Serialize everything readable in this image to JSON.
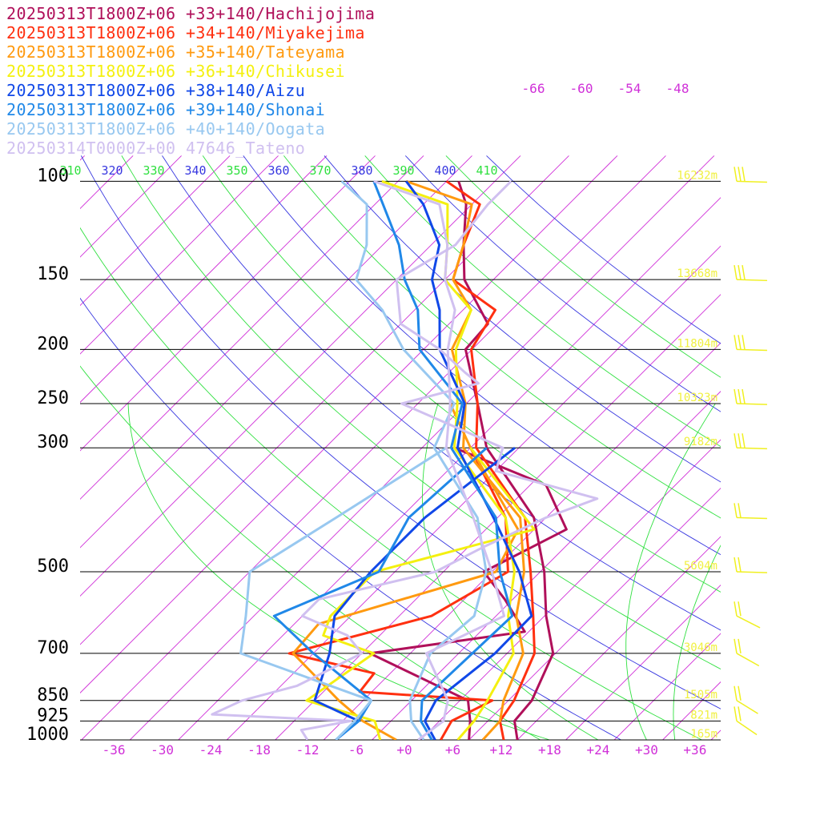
{
  "chart_data": {
    "type": "line",
    "kind": "skew-T log-P sounding",
    "legend_placement": "top-left",
    "legend": [
      {
        "label": "20250313T1800Z+06 +33+140/Hachijojima",
        "color": "#b0105a"
      },
      {
        "label": "20250313T1800Z+06 +34+140/Miyakejima",
        "color": "#ff3010"
      },
      {
        "label": "20250313T1800Z+06 +35+140/Tateyama",
        "color": "#ff9a10"
      },
      {
        "label": "20250313T1800Z+06 +36+140/Chikusei",
        "color": "#f4f010"
      },
      {
        "label": "20250313T1800Z+06 +38+140/Aizu",
        "color": "#1048e8"
      },
      {
        "label": "20250313T1800Z+06 +39+140/Shonai",
        "color": "#2088e8"
      },
      {
        "label": "20250313T1800Z+06 +40+140/Oogata",
        "color": "#98c8f0"
      },
      {
        "label": "20250314T0000Z+00 47646_Tateno",
        "color": "#d0c0f0"
      }
    ],
    "pressure_levels": [
      100,
      150,
      200,
      250,
      300,
      500,
      700,
      850,
      925,
      1000
    ],
    "pressure_labels": [
      "100",
      "150",
      "200",
      "250",
      "300",
      "500",
      "700",
      "850",
      "925",
      "1000"
    ],
    "height_labels": [
      {
        "p": 100,
        "text": "16232m"
      },
      {
        "p": 150,
        "text": "13668m"
      },
      {
        "p": 200,
        "text": "11804m"
      },
      {
        "p": 250,
        "text": "10323m"
      },
      {
        "p": 300,
        "text": "9182m"
      },
      {
        "p": 500,
        "text": "5604m"
      },
      {
        "p": 700,
        "text": "3046m"
      },
      {
        "p": 850,
        "text": "1505m"
      },
      {
        "p": 925,
        "text": "821m"
      },
      {
        "p": 1000,
        "text": "165m"
      }
    ],
    "temperature_ticks": [
      -36,
      -30,
      -24,
      -18,
      -12,
      -6,
      0,
      6,
      12,
      18,
      24,
      30,
      36
    ],
    "temperature_tick_labels": [
      "-36",
      "-30",
      "-24",
      "-18",
      "-12",
      "-6",
      "+0",
      "+6",
      "+12",
      "+18",
      "+24",
      "+30",
      "+36"
    ],
    "top_isotherm_labels": [
      "-66",
      "-60",
      "-54",
      "-48"
    ],
    "theta_labels": [
      "310",
      "320",
      "330",
      "340",
      "350",
      "360",
      "370",
      "380",
      "390",
      "400",
      "410"
    ],
    "series": [
      {
        "name": "20250313T1800Z+06 +33+140/Hachijojima",
        "color": "#b0105a",
        "temperature": [
          [
            1000,
            14
          ],
          [
            925,
            11.3
          ],
          [
            850,
            10.9
          ],
          [
            700,
            7.7
          ],
          [
            600,
            2.2
          ],
          [
            500,
            -3.5
          ],
          [
            400,
            -11.5
          ],
          [
            300,
            -26
          ],
          [
            250,
            -32.6
          ],
          [
            200,
            -40.8
          ],
          [
            180,
            -41.2
          ],
          [
            150,
            -49.6
          ],
          [
            130,
            -54
          ],
          [
            110,
            -58.7
          ],
          [
            100,
            -62.5
          ]
        ],
        "dewpoint": [
          [
            1000,
            8
          ],
          [
            925,
            5.8
          ],
          [
            850,
            3
          ],
          [
            700,
            -15
          ],
          [
            640,
            1.5
          ],
          [
            560,
            -5
          ],
          [
            500,
            -11
          ],
          [
            420,
            -6
          ],
          [
            350,
            -14
          ],
          [
            300,
            -30
          ]
        ]
      },
      {
        "name": "20250313T1800Z+06 +34+140/Miyakejima",
        "color": "#ff3010",
        "temperature": [
          [
            1000,
            12.3
          ],
          [
            925,
            9.5
          ],
          [
            850,
            8.7
          ],
          [
            700,
            5.4
          ],
          [
            600,
            0.6
          ],
          [
            500,
            -5.2
          ],
          [
            400,
            -12.6
          ],
          [
            300,
            -27.3
          ],
          [
            250,
            -32.6
          ],
          [
            200,
            -40.1
          ],
          [
            170,
            -42
          ],
          [
            150,
            -51
          ],
          [
            130,
            -54
          ],
          [
            110,
            -57
          ],
          [
            100,
            -64
          ]
        ],
        "dewpoint": [
          [
            1000,
            4.5
          ],
          [
            925,
            3.5
          ],
          [
            850,
            6
          ],
          [
            820,
            -11.5
          ],
          [
            760,
            -12
          ],
          [
            700,
            -25
          ],
          [
            600,
            -12
          ],
          [
            500,
            -8
          ],
          [
            400,
            -15
          ],
          [
            300,
            -28
          ]
        ]
      },
      {
        "name": "20250313T1800Z+06 +35+140/Tateyama",
        "color": "#ff9a10",
        "temperature": [
          [
            1000,
            9.7
          ],
          [
            925,
            9.5
          ],
          [
            850,
            7.4
          ],
          [
            700,
            4
          ],
          [
            600,
            -1.5
          ],
          [
            500,
            -6
          ],
          [
            400,
            -13.2
          ],
          [
            300,
            -28.9
          ],
          [
            250,
            -34.1
          ],
          [
            200,
            -42.5
          ],
          [
            170,
            -45
          ],
          [
            150,
            -51
          ],
          [
            130,
            -54
          ],
          [
            110,
            -58
          ],
          [
            100,
            -69
          ]
        ],
        "dewpoint": [
          [
            1000,
            -1
          ],
          [
            925,
            -7.5
          ],
          [
            850,
            -13
          ],
          [
            700,
            -24.5
          ],
          [
            620,
            -25
          ],
          [
            500,
            -9.5
          ],
          [
            420,
            -12
          ],
          [
            300,
            -28
          ],
          [
            250,
            -36
          ]
        ]
      },
      {
        "name": "20250313T1800Z+06 +36+140/Chikusei",
        "color": "#f4f010",
        "temperature": [
          [
            1000,
            6.6
          ],
          [
            925,
            6.3
          ],
          [
            850,
            5.4
          ],
          [
            700,
            2.8
          ],
          [
            600,
            -2.5
          ],
          [
            500,
            -7.2
          ],
          [
            400,
            -15
          ],
          [
            300,
            -30
          ],
          [
            250,
            -35.1
          ],
          [
            200,
            -42
          ],
          [
            170,
            -45
          ],
          [
            150,
            -52
          ],
          [
            130,
            -56
          ],
          [
            110,
            -61
          ],
          [
            100,
            -72
          ]
        ],
        "dewpoint": [
          [
            1000,
            -3
          ],
          [
            925,
            -6
          ],
          [
            850,
            -17
          ],
          [
            700,
            -14.5
          ],
          [
            650,
            -23
          ],
          [
            600,
            -24.5
          ],
          [
            500,
            -24.5
          ],
          [
            420,
            -10
          ],
          [
            300,
            -28
          ]
        ]
      },
      {
        "name": "20250313T1800Z+06 +38+140/Aizu",
        "color": "#1048e8",
        "temperature": [
          [
            1000,
            3.8
          ],
          [
            925,
            0.2
          ],
          [
            850,
            -1
          ],
          [
            700,
            0.5
          ],
          [
            600,
            0.4
          ],
          [
            500,
            -6.6
          ],
          [
            400,
            -16.5
          ],
          [
            300,
            -29.6
          ],
          [
            250,
            -34.2
          ],
          [
            200,
            -44
          ],
          [
            170,
            -48.9
          ],
          [
            150,
            -53.6
          ],
          [
            130,
            -57
          ],
          [
            110,
            -64
          ],
          [
            100,
            -69
          ]
        ],
        "dewpoint": [
          [
            1000,
            -8.5
          ],
          [
            925,
            -8
          ],
          [
            850,
            -16
          ],
          [
            700,
            -20
          ],
          [
            600,
            -24
          ],
          [
            500,
            -25
          ],
          [
            400,
            -25
          ],
          [
            300,
            -22.5
          ]
        ]
      },
      {
        "name": "20250313T1800Z+06 +39+140/Shonai",
        "color": "#2088e8",
        "temperature": [
          [
            1000,
            3.4
          ],
          [
            925,
            -0.3
          ],
          [
            850,
            -2.7
          ],
          [
            700,
            -2.3
          ],
          [
            600,
            -2
          ],
          [
            500,
            -9
          ],
          [
            400,
            -16.2
          ],
          [
            300,
            -30.4
          ],
          [
            250,
            -34.5
          ],
          [
            200,
            -46.5
          ],
          [
            170,
            -51.6
          ],
          [
            150,
            -57
          ],
          [
            130,
            -62
          ],
          [
            110,
            -69
          ],
          [
            100,
            -73
          ]
        ],
        "dewpoint": [
          [
            1000,
            -8.5
          ],
          [
            925,
            -8
          ],
          [
            850,
            -9
          ],
          [
            700,
            -22
          ],
          [
            600,
            -31.5
          ],
          [
            500,
            -24
          ],
          [
            400,
            -27
          ],
          [
            300,
            -26
          ]
        ]
      },
      {
        "name": "20250313T1800Z+06 +40+140/Oogata",
        "color": "#98c8f0",
        "temperature": [
          [
            1000,
            2.4
          ],
          [
            925,
            -1.5
          ],
          [
            850,
            -4.2
          ],
          [
            700,
            -7.5
          ],
          [
            600,
            -6.7
          ],
          [
            500,
            -10.7
          ],
          [
            400,
            -18.5
          ],
          [
            300,
            -32.5
          ],
          [
            250,
            -35.5
          ],
          [
            200,
            -48.5
          ],
          [
            170,
            -56
          ],
          [
            150,
            -63
          ],
          [
            130,
            -66
          ],
          [
            110,
            -71
          ],
          [
            100,
            -77
          ]
        ],
        "dewpoint": [
          [
            1000,
            -8.5
          ],
          [
            925,
            -8.5
          ],
          [
            850,
            -9
          ],
          [
            700,
            -31
          ],
          [
            600,
            -35
          ],
          [
            500,
            -40
          ],
          [
            400,
            -36
          ],
          [
            300,
            -31
          ]
        ]
      },
      {
        "name": "20250314T0000Z+00 47646_Tateno",
        "color": "#d0c0f0",
        "temperature": [
          [
            1000,
            1.7
          ],
          [
            925,
            2.5
          ],
          [
            850,
            0.5
          ],
          [
            700,
            -8
          ],
          [
            600,
            -3
          ],
          [
            500,
            -10
          ],
          [
            400,
            -19
          ],
          [
            300,
            -31
          ],
          [
            250,
            -36
          ],
          [
            200,
            -43
          ],
          [
            170,
            -47
          ],
          [
            150,
            -52
          ],
          [
            130,
            -56
          ],
          [
            110,
            -62
          ],
          [
            100,
            -73
          ]
        ],
        "dewpoint": [
          [
            1000,
            -12
          ],
          [
            960,
            -14
          ],
          [
            925,
            -9
          ],
          [
            900,
            -27
          ],
          [
            850,
            -25
          ],
          [
            800,
            -20
          ],
          [
            700,
            -16
          ],
          [
            650,
            -20
          ],
          [
            600,
            -28
          ],
          [
            560,
            -28
          ],
          [
            500,
            -17
          ],
          [
            450,
            -14
          ],
          [
            400,
            -10
          ],
          [
            370,
            -6
          ],
          [
            330,
            -22
          ],
          [
            300,
            -24
          ],
          [
            250,
            -42
          ],
          [
            230,
            -35
          ],
          [
            220,
            -38
          ],
          [
            200,
            -44
          ],
          [
            180,
            -52
          ],
          [
            150,
            -58
          ],
          [
            130,
            -55
          ],
          [
            110,
            -56
          ],
          [
            100,
            -56
          ]
        ]
      }
    ]
  }
}
